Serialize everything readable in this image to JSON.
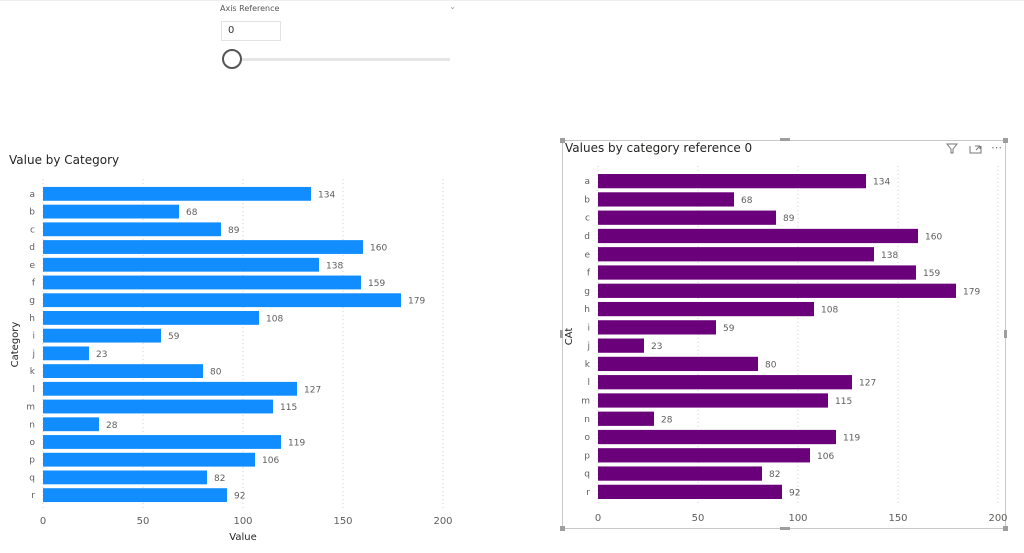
{
  "slicer": {
    "title": "Axis Reference",
    "value": "0",
    "slider_value": 0,
    "slider_range": [
      0,
      200
    ]
  },
  "colors": {
    "left_bar": "#118dff",
    "right_bar": "#6b007b",
    "grid": "#d0d0d0",
    "text": "#605e5c"
  },
  "icons": {
    "filter": "filter-icon",
    "focus": "focus-mode-icon",
    "more": "more-options-icon",
    "chevron": "chevron-down-icon"
  },
  "chart_data": [
    {
      "type": "bar",
      "orientation": "horizontal",
      "title": "Value by Category",
      "xlabel": "Value",
      "ylabel": "Category",
      "xlim": [
        0,
        200
      ],
      "xticks": [
        "0",
        "50",
        "100",
        "150",
        "200"
      ],
      "grid": true,
      "categories": [
        "a",
        "b",
        "c",
        "d",
        "e",
        "f",
        "g",
        "h",
        "i",
        "j",
        "k",
        "l",
        "m",
        "n",
        "o",
        "p",
        "q",
        "r"
      ],
      "values": [
        134,
        68,
        89,
        160,
        138,
        159,
        179,
        108,
        59,
        23,
        80,
        127,
        115,
        28,
        119,
        106,
        82,
        92
      ]
    },
    {
      "type": "bar",
      "orientation": "horizontal",
      "title": "Values by category reference 0",
      "xlabel": "",
      "ylabel": "CAt",
      "xlim": [
        0,
        200
      ],
      "xticks": [
        "0",
        "50",
        "100",
        "150",
        "200"
      ],
      "grid": true,
      "categories": [
        "a",
        "b",
        "c",
        "d",
        "e",
        "f",
        "g",
        "h",
        "i",
        "j",
        "k",
        "l",
        "m",
        "n",
        "o",
        "p",
        "q",
        "r"
      ],
      "values": [
        134,
        68,
        89,
        160,
        138,
        159,
        179,
        108,
        59,
        23,
        80,
        127,
        115,
        28,
        119,
        106,
        82,
        92
      ]
    }
  ]
}
